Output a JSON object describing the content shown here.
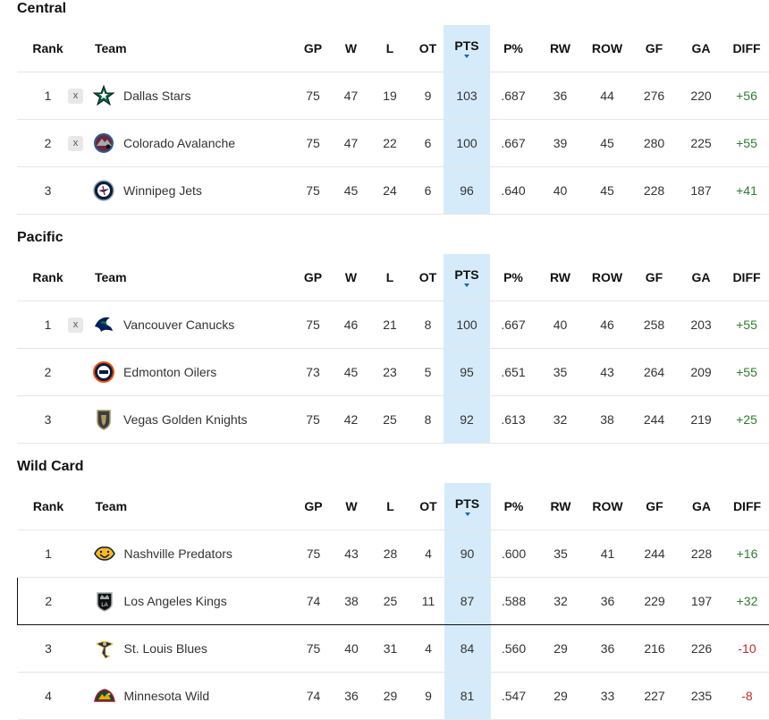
{
  "columns": [
    "Rank",
    "Team",
    "GP",
    "W",
    "L",
    "OT",
    "PTS",
    "P%",
    "RW",
    "ROW",
    "GF",
    "GA",
    "DIFF"
  ],
  "colors": {
    "pts_highlight": "#d6ebfa",
    "positive": "#2e7d32",
    "negative": "#c62828",
    "sort_caret": "#1565c0"
  },
  "sections": [
    {
      "title": "Central",
      "rows": [
        {
          "rank": "1",
          "clinch": "x",
          "team": "Dallas Stars",
          "logo": "dallas-stars-logo",
          "gp": "75",
          "w": "47",
          "l": "19",
          "ot": "9",
          "pts": "103",
          "pct": ".687",
          "rw": "36",
          "row": "44",
          "gf": "276",
          "ga": "220",
          "diff": "+56"
        },
        {
          "rank": "2",
          "clinch": "x",
          "team": "Colorado Avalanche",
          "logo": "colorado-avalanche-logo",
          "gp": "75",
          "w": "47",
          "l": "22",
          "ot": "6",
          "pts": "100",
          "pct": ".667",
          "rw": "39",
          "row": "45",
          "gf": "280",
          "ga": "225",
          "diff": "+55"
        },
        {
          "rank": "3",
          "clinch": "",
          "team": "Winnipeg Jets",
          "logo": "winnipeg-jets-logo",
          "gp": "75",
          "w": "45",
          "l": "24",
          "ot": "6",
          "pts": "96",
          "pct": ".640",
          "rw": "40",
          "row": "45",
          "gf": "228",
          "ga": "187",
          "diff": "+41"
        }
      ]
    },
    {
      "title": "Pacific",
      "rows": [
        {
          "rank": "1",
          "clinch": "x",
          "team": "Vancouver Canucks",
          "logo": "vancouver-canucks-logo",
          "gp": "75",
          "w": "46",
          "l": "21",
          "ot": "8",
          "pts": "100",
          "pct": ".667",
          "rw": "40",
          "row": "46",
          "gf": "258",
          "ga": "203",
          "diff": "+55"
        },
        {
          "rank": "2",
          "clinch": "",
          "team": "Edmonton Oilers",
          "logo": "edmonton-oilers-logo",
          "gp": "73",
          "w": "45",
          "l": "23",
          "ot": "5",
          "pts": "95",
          "pct": ".651",
          "rw": "35",
          "row": "43",
          "gf": "264",
          "ga": "209",
          "diff": "+55"
        },
        {
          "rank": "3",
          "clinch": "",
          "team": "Vegas Golden Knights",
          "logo": "vegas-golden-knights-logo",
          "gp": "75",
          "w": "42",
          "l": "25",
          "ot": "8",
          "pts": "92",
          "pct": ".613",
          "rw": "32",
          "row": "38",
          "gf": "244",
          "ga": "219",
          "diff": "+25"
        }
      ]
    },
    {
      "title": "Wild Card",
      "rows": [
        {
          "rank": "1",
          "clinch": "",
          "team": "Nashville Predators",
          "logo": "nashville-predators-logo",
          "gp": "75",
          "w": "43",
          "l": "28",
          "ot": "4",
          "pts": "90",
          "pct": ".600",
          "rw": "35",
          "row": "41",
          "gf": "244",
          "ga": "228",
          "diff": "+16"
        },
        {
          "rank": "2",
          "clinch": "",
          "team": "Los Angeles Kings",
          "logo": "los-angeles-kings-logo",
          "gp": "74",
          "w": "38",
          "l": "25",
          "ot": "11",
          "pts": "87",
          "pct": ".588",
          "rw": "32",
          "row": "36",
          "gf": "229",
          "ga": "197",
          "diff": "+32",
          "highlight": true
        },
        {
          "rank": "3",
          "clinch": "",
          "team": "St. Louis Blues",
          "logo": "st-louis-blues-logo",
          "gp": "75",
          "w": "40",
          "l": "31",
          "ot": "4",
          "pts": "84",
          "pct": ".560",
          "rw": "29",
          "row": "36",
          "gf": "216",
          "ga": "226",
          "diff": "-10"
        },
        {
          "rank": "4",
          "clinch": "",
          "team": "Minnesota Wild",
          "logo": "minnesota-wild-logo",
          "gp": "74",
          "w": "36",
          "l": "29",
          "ot": "9",
          "pts": "81",
          "pct": ".547",
          "rw": "29",
          "row": "33",
          "gf": "227",
          "ga": "235",
          "diff": "-8"
        }
      ]
    }
  ]
}
